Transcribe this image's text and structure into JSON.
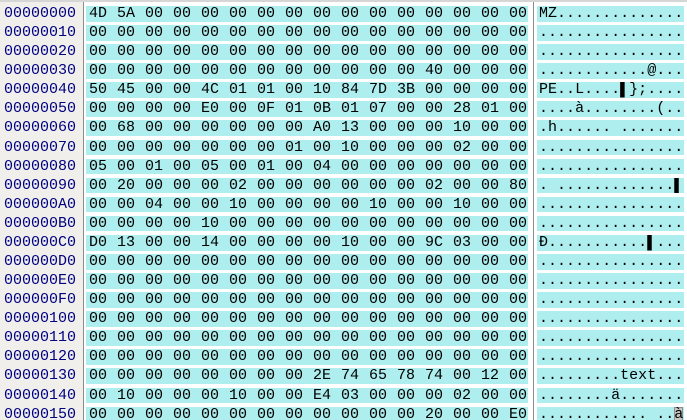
{
  "colors": {
    "row_highlight": "#afeeee",
    "address_text": "#000080",
    "byte_text": "#000000",
    "address_column_bg": "#f0efec",
    "divider": "#8c8c8c",
    "cursor_bg": "#c6c6c2"
  },
  "hex_view": {
    "bytes_per_row": 16,
    "cursor": {
      "row_index": 21,
      "char_index": 15,
      "pane": "ascii"
    },
    "rows": [
      {
        "addr": "00000000",
        "hex": "4D 5A 00 00 00 00 00 00 00 00 00 00 00 00 00 00",
        "ascii": "MZ.............."
      },
      {
        "addr": "00000010",
        "hex": "00 00 00 00 00 00 00 00 00 00 00 00 00 00 00 00",
        "ascii": "................"
      },
      {
        "addr": "00000020",
        "hex": "00 00 00 00 00 00 00 00 00 00 00 00 00 00 00 00",
        "ascii": "................"
      },
      {
        "addr": "00000030",
        "hex": "00 00 00 00 00 00 00 00 00 00 00 00 40 00 00 00",
        "ascii": "............@..."
      },
      {
        "addr": "00000040",
        "hex": "50 45 00 00 4C 01 01 00 10 84 7D 3B 00 00 00 00",
        "ascii": "PE..L....▌};...."
      },
      {
        "addr": "00000050",
        "hex": "00 00 00 00 E0 00 0F 01 0B 01 07 00 00 28 01 00",
        "ascii": "....à........(.."
      },
      {
        "addr": "00000060",
        "hex": "00 68 00 00 00 00 00 00 A0 13 00 00 00 10 00 00",
        "ascii": ".h...... ......."
      },
      {
        "addr": "00000070",
        "hex": "00 00 00 00 00 00 00 01 00 10 00 00 00 02 00 00",
        "ascii": "................"
      },
      {
        "addr": "00000080",
        "hex": "05 00 01 00 05 00 01 00 04 00 00 00 00 00 00 00",
        "ascii": "................"
      },
      {
        "addr": "00000090",
        "hex": "00 20 00 00 00 02 00 00 00 00 00 00 02 00 00 80",
        "ascii": ". .............▌"
      },
      {
        "addr": "000000A0",
        "hex": "00 00 04 00 00 10 00 00 00 00 10 00 00 10 00 00",
        "ascii": "................"
      },
      {
        "addr": "000000B0",
        "hex": "00 00 00 00 10 00 00 00 00 00 00 00 00 00 00 00",
        "ascii": "................"
      },
      {
        "addr": "000000C0",
        "hex": "D0 13 00 00 14 00 00 00 00 10 00 00 9C 03 00 00",
        "ascii": "Ð...........▌..."
      },
      {
        "addr": "000000D0",
        "hex": "00 00 00 00 00 00 00 00 00 00 00 00 00 00 00 00",
        "ascii": "................"
      },
      {
        "addr": "000000E0",
        "hex": "00 00 00 00 00 00 00 00 00 00 00 00 00 00 00 00",
        "ascii": "................"
      },
      {
        "addr": "000000F0",
        "hex": "00 00 00 00 00 00 00 00 00 00 00 00 00 00 00 00",
        "ascii": "................"
      },
      {
        "addr": "00000100",
        "hex": "00 00 00 00 00 00 00 00 00 00 00 00 00 00 00 00",
        "ascii": "................"
      },
      {
        "addr": "00000110",
        "hex": "00 00 00 00 00 00 00 00 00 00 00 00 00 00 00 00",
        "ascii": "................"
      },
      {
        "addr": "00000120",
        "hex": "00 00 00 00 00 00 00 00 00 00 00 00 00 00 00 00",
        "ascii": "................"
      },
      {
        "addr": "00000130",
        "hex": "00 00 00 00 00 00 00 00 2E 74 65 78 74 00 12 00",
        "ascii": ".........text..."
      },
      {
        "addr": "00000140",
        "hex": "00 10 00 00 00 10 00 00 E4 03 00 00 00 02 00 00",
        "ascii": "........ä......."
      },
      {
        "addr": "00000150",
        "hex": "00 00 00 00 00 00 00 00 00 00 00 00 20 00 00 E0",
        "ascii": "............ ..à"
      }
    ]
  }
}
